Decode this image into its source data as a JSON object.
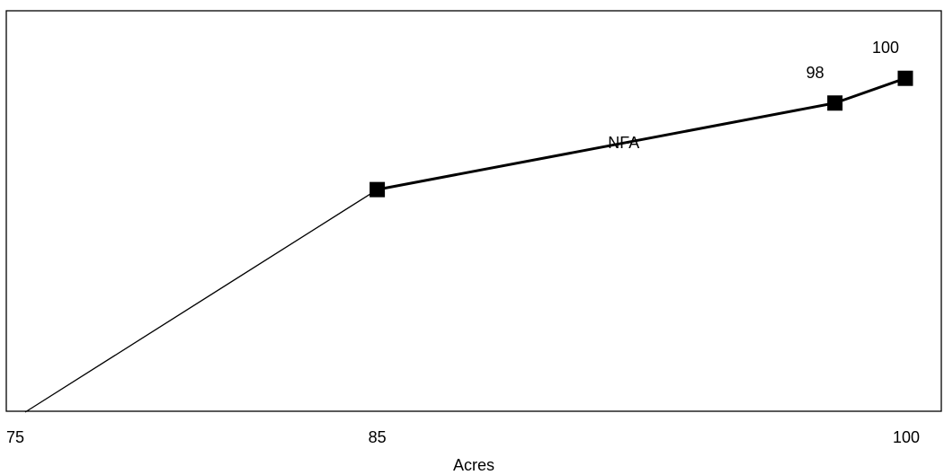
{
  "chart_data": {
    "type": "line",
    "title": "",
    "xlabel": "Acres",
    "ylabel": "",
    "xlim": [
      75,
      100
    ],
    "ylim": [
      0,
      100
    ],
    "grid": false,
    "x_ticks": [
      {
        "value": 75,
        "label": "75"
      },
      {
        "value": 85,
        "label": "85"
      },
      {
        "value": 100,
        "label": "100"
      }
    ],
    "series": [
      {
        "name": "NFA",
        "points": [
          {
            "x": 75,
            "y": 0,
            "label": "",
            "marker": false
          },
          {
            "x": 85,
            "y": 54,
            "label": "",
            "marker": true
          },
          {
            "x": 98,
            "y": 75,
            "label": "98",
            "marker": true
          },
          {
            "x": 100,
            "y": 81,
            "label": "100",
            "marker": true
          }
        ]
      }
    ],
    "annotations": [
      {
        "text": "NFA",
        "x": 92,
        "y": 64
      }
    ],
    "colors": {
      "line": "#000000",
      "marker": "#000000",
      "frame": "#000000"
    }
  }
}
